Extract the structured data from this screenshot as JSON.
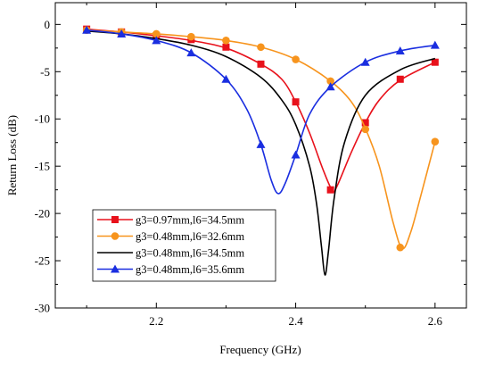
{
  "chart_data": {
    "type": "line",
    "title": "",
    "xlabel": "Frequency (GHz)",
    "ylabel": "Return Loss (dB)",
    "xlim": [
      2.055,
      2.645
    ],
    "ylim": [
      -30,
      2.3
    ],
    "x_ticks": [
      2.2,
      2.4,
      2.6
    ],
    "x_tick_labels": [
      "2.2",
      "2.4",
      "2.6"
    ],
    "x_minor_ticks": [
      2.1,
      2.3,
      2.5
    ],
    "y_ticks": [
      0,
      -5,
      -10,
      -15,
      -20,
      -25,
      -30
    ],
    "y_tick_labels": [
      "0",
      "-5",
      "-10",
      "-15",
      "-20",
      "-25",
      "-30"
    ],
    "grid": false,
    "legend_position": "lower-left",
    "series": [
      {
        "name": "g3=0.97mm,l6=34.5mm",
        "color": "#e8111b",
        "marker": "square",
        "curve": [
          [
            2.1,
            -0.5
          ],
          [
            2.15,
            -0.8
          ],
          [
            2.2,
            -1.2
          ],
          [
            2.25,
            -1.7
          ],
          [
            2.3,
            -2.5
          ],
          [
            2.35,
            -4.2
          ],
          [
            2.38,
            -5.8
          ],
          [
            2.4,
            -8.2
          ],
          [
            2.42,
            -11.5
          ],
          [
            2.44,
            -15.5
          ],
          [
            2.453,
            -17.6
          ],
          [
            2.46,
            -17.0
          ],
          [
            2.48,
            -13.5
          ],
          [
            2.5,
            -10.4
          ],
          [
            2.52,
            -8.0
          ],
          [
            2.55,
            -5.9
          ],
          [
            2.6,
            -4.0
          ]
        ],
        "markers": [
          [
            2.1,
            -0.5
          ],
          [
            2.15,
            -0.8
          ],
          [
            2.2,
            -1.2
          ],
          [
            2.25,
            -1.6
          ],
          [
            2.3,
            -2.4
          ],
          [
            2.35,
            -4.2
          ],
          [
            2.4,
            -8.2
          ],
          [
            2.45,
            -17.5
          ],
          [
            2.5,
            -10.4
          ],
          [
            2.55,
            -5.8
          ],
          [
            2.6,
            -4.0
          ]
        ]
      },
      {
        "name": "g3=0.48mm,l6=32.6mm",
        "color": "#f7941d",
        "marker": "circle",
        "curve": [
          [
            2.1,
            -0.6
          ],
          [
            2.15,
            -0.8
          ],
          [
            2.2,
            -1.0
          ],
          [
            2.25,
            -1.3
          ],
          [
            2.3,
            -1.7
          ],
          [
            2.35,
            -2.4
          ],
          [
            2.4,
            -3.7
          ],
          [
            2.45,
            -6.0
          ],
          [
            2.48,
            -8.2
          ],
          [
            2.5,
            -11.0
          ],
          [
            2.52,
            -15.0
          ],
          [
            2.54,
            -21.0
          ],
          [
            2.553,
            -23.7
          ],
          [
            2.565,
            -22.0
          ],
          [
            2.58,
            -18.0
          ],
          [
            2.6,
            -12.4
          ]
        ],
        "markers": [
          [
            2.1,
            -0.6
          ],
          [
            2.15,
            -0.8
          ],
          [
            2.2,
            -1.0
          ],
          [
            2.25,
            -1.3
          ],
          [
            2.3,
            -1.7
          ],
          [
            2.35,
            -2.4
          ],
          [
            2.4,
            -3.7
          ],
          [
            2.45,
            -6.0
          ],
          [
            2.5,
            -11.1
          ],
          [
            2.55,
            -23.6
          ],
          [
            2.6,
            -12.4
          ]
        ]
      },
      {
        "name": "g3=0.48mm,l6=34.5mm",
        "color": "#000000",
        "marker": "none",
        "curve": [
          [
            2.1,
            -0.7
          ],
          [
            2.15,
            -1.0
          ],
          [
            2.2,
            -1.5
          ],
          [
            2.25,
            -2.2
          ],
          [
            2.3,
            -3.4
          ],
          [
            2.35,
            -5.6
          ],
          [
            2.38,
            -8.0
          ],
          [
            2.4,
            -10.6
          ],
          [
            2.42,
            -15.0
          ],
          [
            2.43,
            -19.0
          ],
          [
            2.437,
            -23.5
          ],
          [
            2.442,
            -26.5
          ],
          [
            2.447,
            -24.0
          ],
          [
            2.455,
            -18.5
          ],
          [
            2.47,
            -12.5
          ],
          [
            2.5,
            -7.5
          ],
          [
            2.55,
            -4.8
          ],
          [
            2.6,
            -3.6
          ]
        ],
        "markers": []
      },
      {
        "name": "g3=0.48mm,l6=35.6mm",
        "color": "#1a2ee0",
        "marker": "triangle",
        "curve": [
          [
            2.1,
            -0.6
          ],
          [
            2.15,
            -1.0
          ],
          [
            2.2,
            -1.7
          ],
          [
            2.25,
            -3.0
          ],
          [
            2.3,
            -5.8
          ],
          [
            2.33,
            -9.0
          ],
          [
            2.35,
            -12.7
          ],
          [
            2.365,
            -16.5
          ],
          [
            2.375,
            -17.9
          ],
          [
            2.385,
            -16.8
          ],
          [
            2.4,
            -13.8
          ],
          [
            2.42,
            -9.5
          ],
          [
            2.45,
            -6.6
          ],
          [
            2.5,
            -4.0
          ],
          [
            2.55,
            -2.8
          ],
          [
            2.6,
            -2.2
          ]
        ],
        "markers": [
          [
            2.1,
            -0.6
          ],
          [
            2.15,
            -1.0
          ],
          [
            2.2,
            -1.7
          ],
          [
            2.25,
            -3.0
          ],
          [
            2.3,
            -5.8
          ],
          [
            2.35,
            -12.7
          ],
          [
            2.4,
            -13.8
          ],
          [
            2.45,
            -6.6
          ],
          [
            2.5,
            -4.0
          ],
          [
            2.55,
            -2.8
          ],
          [
            2.6,
            -2.2
          ]
        ]
      }
    ]
  }
}
